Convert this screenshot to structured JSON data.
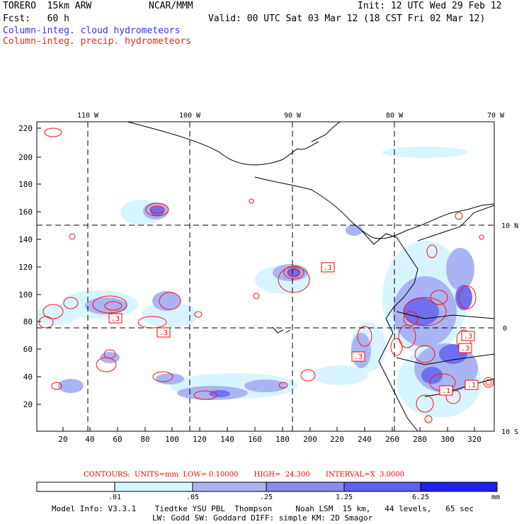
{
  "header": {
    "model": "TORERO  15km ARW",
    "org": "NCAR/MMM",
    "init": "Init: 12 UTC Wed 29 Feb 12",
    "fcst": "Fcst:   60 h",
    "valid": "Valid: 00 UTC Sat 03 Mar 12 (18 CST Fri 02 Mar 12)",
    "legend_cloud": "Column-integ. cloud hydrometeors",
    "legend_precip": "Column-integ. precip. hydrometeors"
  },
  "map": {
    "top_lon_labels": [
      "110 W",
      "100 W",
      "90 W",
      "80 W",
      "70 W"
    ],
    "right_lat_labels": [
      "10 N",
      "0",
      "10 S"
    ],
    "y_ticks": [
      "220",
      "200",
      "180",
      "160",
      "140",
      "120",
      "100",
      "80",
      "60",
      "40",
      "20"
    ],
    "x_ticks": [
      "20",
      "40",
      "60",
      "80",
      "100",
      "120",
      "140",
      "160",
      "180",
      "200",
      "220",
      "240",
      "260",
      "280",
      "300",
      "320"
    ],
    "box_labels": [
      ".1",
      ".3",
      ".3",
      ".3",
      ".3",
      ".3",
      ".1",
      ".1"
    ]
  },
  "contour_info": {
    "contours": "CONTOURS:  UNITS=mm  LOW= 0.10000",
    "high": "HIGH=  24.300",
    "interval": "INTERVAL=X  3.0000"
  },
  "colorbar": {
    "labels": [
      ".01",
      ".05",
      ".25",
      "1.25",
      "6.25"
    ],
    "unit": "mm",
    "colors": [
      "#ffffff",
      "#d8f4ff",
      "#aab4f4",
      "#8a8af0",
      "#6060ee",
      "#2020e8"
    ]
  },
  "footer": {
    "line1": "Model Info: V3.3.1    Tiedtke YSU PBL  Thompson     Noah LSM  15 km,   44 levels,   65 sec",
    "line2": "LW: Godd SW: Goddard DIFF: simple KM: 2D Smagor"
  }
}
